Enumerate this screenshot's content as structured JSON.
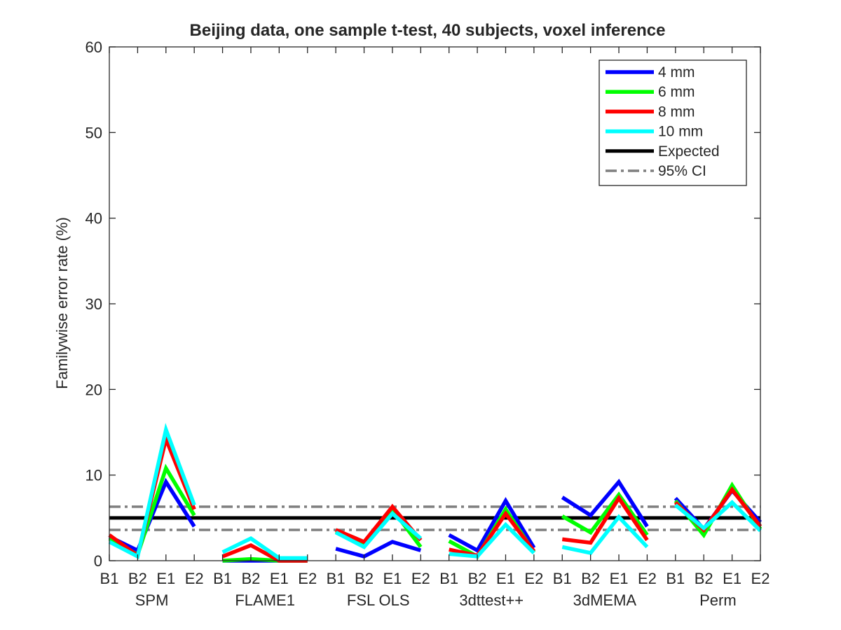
{
  "chart_data": {
    "type": "line",
    "title": "Beijing data, one sample t-test, 40 subjects, voxel inference",
    "xlabel": "",
    "ylabel": "Familywise error rate (%)",
    "ylim": [
      0,
      60
    ],
    "yticks": [
      0,
      10,
      20,
      30,
      40,
      50,
      60
    ],
    "xtick_labels": [
      "B1",
      "B2",
      "E1",
      "E2",
      "B1",
      "B2",
      "E1",
      "E2",
      "B1",
      "B2",
      "E1",
      "E2",
      "B1",
      "B2",
      "E1",
      "E2",
      "B1",
      "B2",
      "E1",
      "E2",
      "B1",
      "B2",
      "E1",
      "E2"
    ],
    "groups": [
      "SPM",
      "FLAME1",
      "FSL OLS",
      "3dttest++",
      "3dMEMA",
      "Perm"
    ],
    "legend_position": "top-right",
    "grid": false,
    "series": [
      {
        "name": "4 mm",
        "color": "#0000ff",
        "values": [
          [
            2.8,
            1.2,
            9.2,
            4.0
          ],
          [
            0.0,
            0.0,
            0.0,
            0.0
          ],
          [
            1.4,
            0.5,
            2.2,
            1.2
          ],
          [
            3.0,
            1.2,
            7.0,
            1.5
          ],
          [
            7.4,
            5.3,
            9.2,
            4.0
          ],
          [
            7.3,
            3.7,
            8.2,
            4.5
          ]
        ]
      },
      {
        "name": "6 mm",
        "color": "#00ff00",
        "values": [
          [
            2.6,
            0.7,
            10.8,
            5.3
          ],
          [
            0.0,
            0.2,
            0.0,
            0.0
          ],
          [
            3.4,
            2.0,
            6.0,
            1.6
          ],
          [
            2.3,
            0.5,
            6.0,
            1.0
          ],
          [
            5.2,
            3.3,
            7.7,
            3.0
          ],
          [
            7.0,
            3.0,
            8.8,
            3.7
          ]
        ]
      },
      {
        "name": "8 mm",
        "color": "#ff0000",
        "values": [
          [
            3.0,
            0.6,
            14.2,
            6.0
          ],
          [
            0.5,
            1.8,
            0.0,
            0.0
          ],
          [
            3.6,
            2.2,
            6.3,
            2.4
          ],
          [
            1.3,
            0.6,
            5.5,
            1.1
          ],
          [
            2.5,
            2.1,
            7.3,
            2.4
          ],
          [
            6.8,
            3.6,
            8.3,
            4.0
          ]
        ]
      },
      {
        "name": "10 mm",
        "color": "#00ffff",
        "values": [
          [
            2.2,
            0.5,
            15.3,
            6.5
          ],
          [
            1.0,
            2.6,
            0.3,
            0.3
          ],
          [
            3.3,
            1.6,
            5.5,
            2.6
          ],
          [
            0.8,
            0.5,
            4.2,
            0.9
          ],
          [
            1.6,
            0.9,
            5.1,
            1.6
          ],
          [
            6.5,
            3.8,
            6.8,
            3.5
          ]
        ]
      }
    ],
    "reference_lines": [
      {
        "name": "Expected",
        "value": 5.0,
        "color": "#000000",
        "style": "solid"
      },
      {
        "name": "95% CI",
        "values": [
          3.6,
          6.3
        ],
        "color": "#7f7f7f",
        "style": "dash-dot"
      }
    ]
  }
}
